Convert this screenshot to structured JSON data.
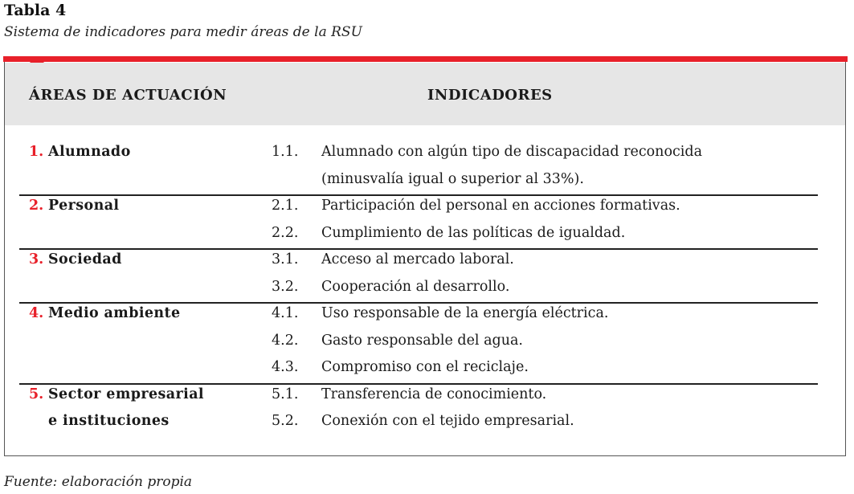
{
  "caption": {
    "label": "Tabla 4",
    "title": "Sistema de indicadores para medir áreas de la RSU"
  },
  "header": {
    "areas": "ÁREAS DE ACTUACIÓN",
    "indicadores": "INDICADORES"
  },
  "groups": [
    {
      "num": "1.",
      "name_lines": [
        "Alumnado"
      ],
      "indicators": [
        {
          "code": "1.1.",
          "lines": [
            "Alumnado con algún tipo de discapacidad reconocida",
            "(minusvalía igual o superior al 33%)."
          ]
        }
      ]
    },
    {
      "num": "2.",
      "name_lines": [
        "Personal"
      ],
      "indicators": [
        {
          "code": "2.1.",
          "lines": [
            "Participación del personal en acciones formativas."
          ]
        },
        {
          "code": "2.2.",
          "lines": [
            "Cumplimiento de las políticas de igualdad."
          ]
        }
      ]
    },
    {
      "num": "3.",
      "name_lines": [
        "Sociedad"
      ],
      "indicators": [
        {
          "code": "3.1.",
          "lines": [
            "Acceso al mercado laboral."
          ]
        },
        {
          "code": "3.2.",
          "lines": [
            "Cooperación al desarrollo."
          ]
        }
      ]
    },
    {
      "num": "4.",
      "name_lines": [
        "Medio ambiente"
      ],
      "indicators": [
        {
          "code": "4.1.",
          "lines": [
            "Uso responsable de la energía eléctrica."
          ]
        },
        {
          "code": "4.2.",
          "lines": [
            "Gasto responsable del agua."
          ]
        },
        {
          "code": "4.3.",
          "lines": [
            "Compromiso con el reciclaje."
          ]
        }
      ]
    },
    {
      "num": "5.",
      "name_lines": [
        "Sector empresarial",
        "e instituciones"
      ],
      "indicators": [
        {
          "code": "5.1.",
          "lines": [
            "Transferencia de conocimiento."
          ]
        },
        {
          "code": "5.2.",
          "lines": [
            "Conexión con el tejido empresarial."
          ]
        }
      ]
    }
  ],
  "footer": "Fuente: elaboración propia",
  "colors": {
    "accent": "#e8202a",
    "header_bg": "#e6e6e6",
    "rule": "#222222"
  }
}
